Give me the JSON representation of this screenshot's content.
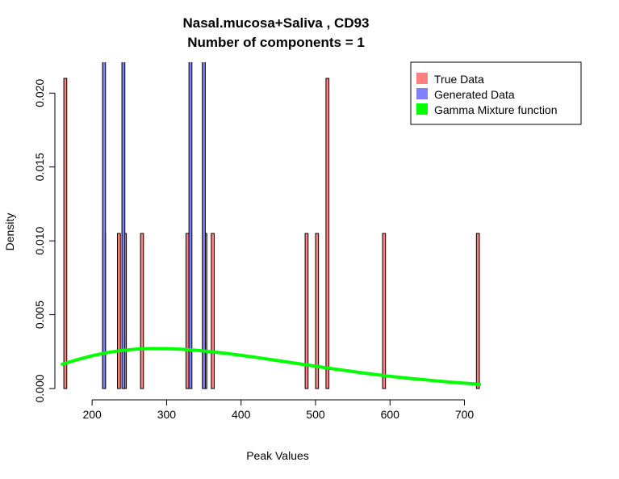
{
  "chart_data": {
    "type": "bar",
    "title": [
      "Nasal.mucosa+Saliva , CD93",
      "Number of components =  1"
    ],
    "xlabel": "Peak Values",
    "ylabel": "Density",
    "xlim": [
      150,
      720
    ],
    "ylim": [
      0,
      0.021
    ],
    "x_ticks": [
      200,
      300,
      400,
      500,
      600,
      700
    ],
    "y_ticks": [
      0.0,
      0.005,
      0.01,
      0.015,
      0.02
    ],
    "x_tick_labels": [
      "200",
      "300",
      "400",
      "500",
      "600",
      "700"
    ],
    "y_tick_labels": [
      "0.000",
      "0.005",
      "0.010",
      "0.015",
      "0.020"
    ],
    "bin_width": 4,
    "legend": {
      "position": "top-right",
      "entries": [
        {
          "label": "True Data",
          "color": "#ff8080"
        },
        {
          "label": "Generated Data",
          "color": "#8080ff"
        },
        {
          "label": "Gamma Mixture function",
          "color": "#00ff00"
        }
      ]
    },
    "series": [
      {
        "name": "True Data",
        "color": "#ff8080",
        "bars": [
          {
            "x": 164,
            "y": 0.021
          },
          {
            "x": 216,
            "y": 0.0105
          },
          {
            "x": 236,
            "y": 0.0105
          },
          {
            "x": 244,
            "y": 0.0105
          },
          {
            "x": 267,
            "y": 0.0105
          },
          {
            "x": 328,
            "y": 0.0105
          },
          {
            "x": 352,
            "y": 0.0105
          },
          {
            "x": 362,
            "y": 0.0105
          },
          {
            "x": 488,
            "y": 0.0105
          },
          {
            "x": 502,
            "y": 0.0105
          },
          {
            "x": 516,
            "y": 0.021
          },
          {
            "x": 592,
            "y": 0.0105
          },
          {
            "x": 718,
            "y": 0.0105
          }
        ]
      },
      {
        "name": "Generated Data",
        "color": "#8080ff",
        "bars": [
          {
            "x": 216,
            "y": 0.05
          },
          {
            "x": 242,
            "y": 0.05
          },
          {
            "x": 332,
            "y": 0.05
          },
          {
            "x": 350,
            "y": 0.05
          }
        ]
      },
      {
        "name": "Gamma Mixture function",
        "color": "#00ff00",
        "type": "line",
        "x": [
          160,
          180,
          200,
          220,
          240,
          260,
          280,
          300,
          320,
          340,
          360,
          380,
          400,
          420,
          440,
          460,
          480,
          500,
          520,
          540,
          560,
          580,
          600,
          620,
          640,
          660,
          680,
          700,
          720
        ],
        "y": [
          0.00165,
          0.00195,
          0.00222,
          0.00243,
          0.00258,
          0.00267,
          0.00271,
          0.0027,
          0.00266,
          0.00259,
          0.00249,
          0.00238,
          0.00225,
          0.00211,
          0.00196,
          0.00181,
          0.00166,
          0.00151,
          0.00136,
          0.00122,
          0.00108,
          0.00095,
          0.00083,
          0.00072,
          0.00062,
          0.00053,
          0.00044,
          0.00036,
          0.00029
        ]
      }
    ]
  }
}
